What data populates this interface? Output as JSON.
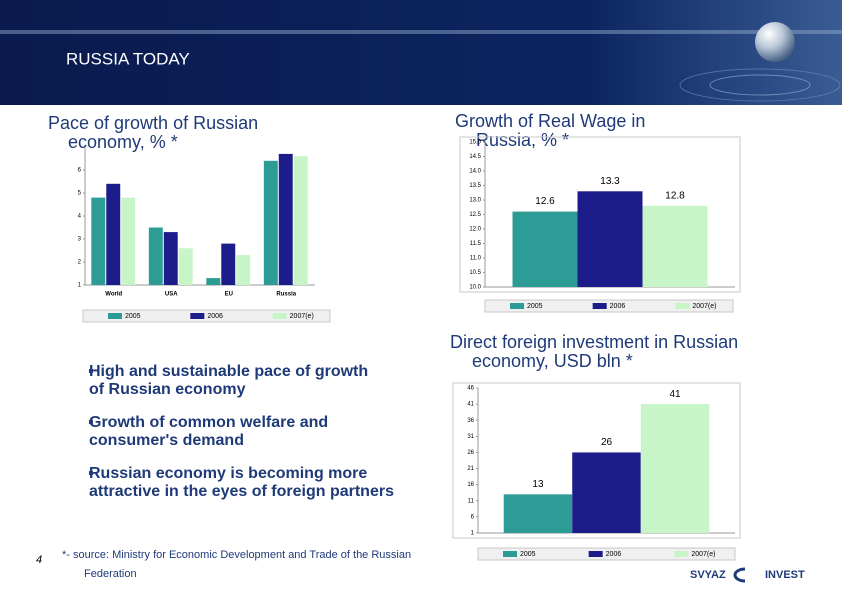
{
  "slide": {
    "title": "RUSSIA TODAY",
    "bullets": [
      [
        "High and sustainable pace of growth",
        "of Russian economy"
      ],
      [
        "Growth of common welfare and",
        "consumer's demand"
      ],
      [
        "Russian economy is becoming more",
        "attractive in the eyes of foreign partners"
      ]
    ],
    "footnote": [
      "*- source: Ministry for Economic Development and Trade of the Russian",
      "Federation"
    ],
    "page_number": "4",
    "logo": [
      "SVYAZ",
      "INVEST"
    ]
  },
  "chart_data": [
    {
      "type": "bar",
      "title": [
        "Pace of growth of Russian",
        "economy, % *"
      ],
      "categories": [
        "World",
        "USA",
        "EU",
        "Russia"
      ],
      "series": [
        {
          "name": "2005",
          "color": "#2e9c96",
          "values": [
            4.8,
            3.5,
            1.3,
            6.4
          ]
        },
        {
          "name": "2006",
          "color": "#1c1c8a",
          "values": [
            5.4,
            3.3,
            2.8,
            6.7
          ]
        },
        {
          "name": "2007(e)",
          "color": "#c8f5c8",
          "values": [
            4.8,
            2.6,
            2.3,
            6.6
          ]
        }
      ],
      "ylim": [
        1,
        7
      ],
      "yticks": [
        1,
        2,
        3,
        4,
        5,
        6
      ],
      "grid": false
    },
    {
      "type": "bar",
      "title": [
        "Growth of Real Wage in",
        "Russia, % *"
      ],
      "categories": [
        null
      ],
      "series": [
        {
          "name": "2005",
          "color": "#2e9c96",
          "values": [
            12.6
          ]
        },
        {
          "name": "2006",
          "color": "#1c1c8a",
          "values": [
            13.3
          ]
        },
        {
          "name": "2007(e)",
          "color": "#c8f5c8",
          "values": [
            12.8
          ]
        }
      ],
      "ylim": [
        10,
        15
      ],
      "yticks": [
        {
          "value": 10,
          "label": "10.0"
        },
        {
          "value": 10.5,
          "label": "10.5"
        },
        {
          "value": 11,
          "label": "11.0"
        },
        {
          "value": 11.5,
          "label": "11.5"
        },
        {
          "value": 12,
          "label": "12.0"
        },
        {
          "value": 12.5,
          "label": "12.5"
        },
        {
          "value": 13,
          "label": "13.0"
        },
        {
          "value": 13.5,
          "label": "13.5"
        },
        {
          "value": 14,
          "label": "14.0"
        },
        {
          "value": 14.5,
          "label": "14.5"
        },
        {
          "value": 15,
          "label": "15.0"
        }
      ],
      "grid": false
    },
    {
      "type": "bar",
      "title": [
        "Direct foreign investment in Russian",
        "economy, USD bln *"
      ],
      "categories": [
        null
      ],
      "series": [
        {
          "name": "2005",
          "color": "#2e9c96",
          "values": [
            13
          ]
        },
        {
          "name": "2006",
          "color": "#1c1c8a",
          "values": [
            26
          ]
        },
        {
          "name": "2007(e)",
          "color": "#c8f5c8",
          "values": [
            41
          ]
        }
      ],
      "ylim": [
        1,
        46
      ],
      "yticks": [
        1,
        6,
        11,
        16,
        21,
        26,
        31,
        36,
        41,
        46
      ],
      "grid": false
    }
  ]
}
